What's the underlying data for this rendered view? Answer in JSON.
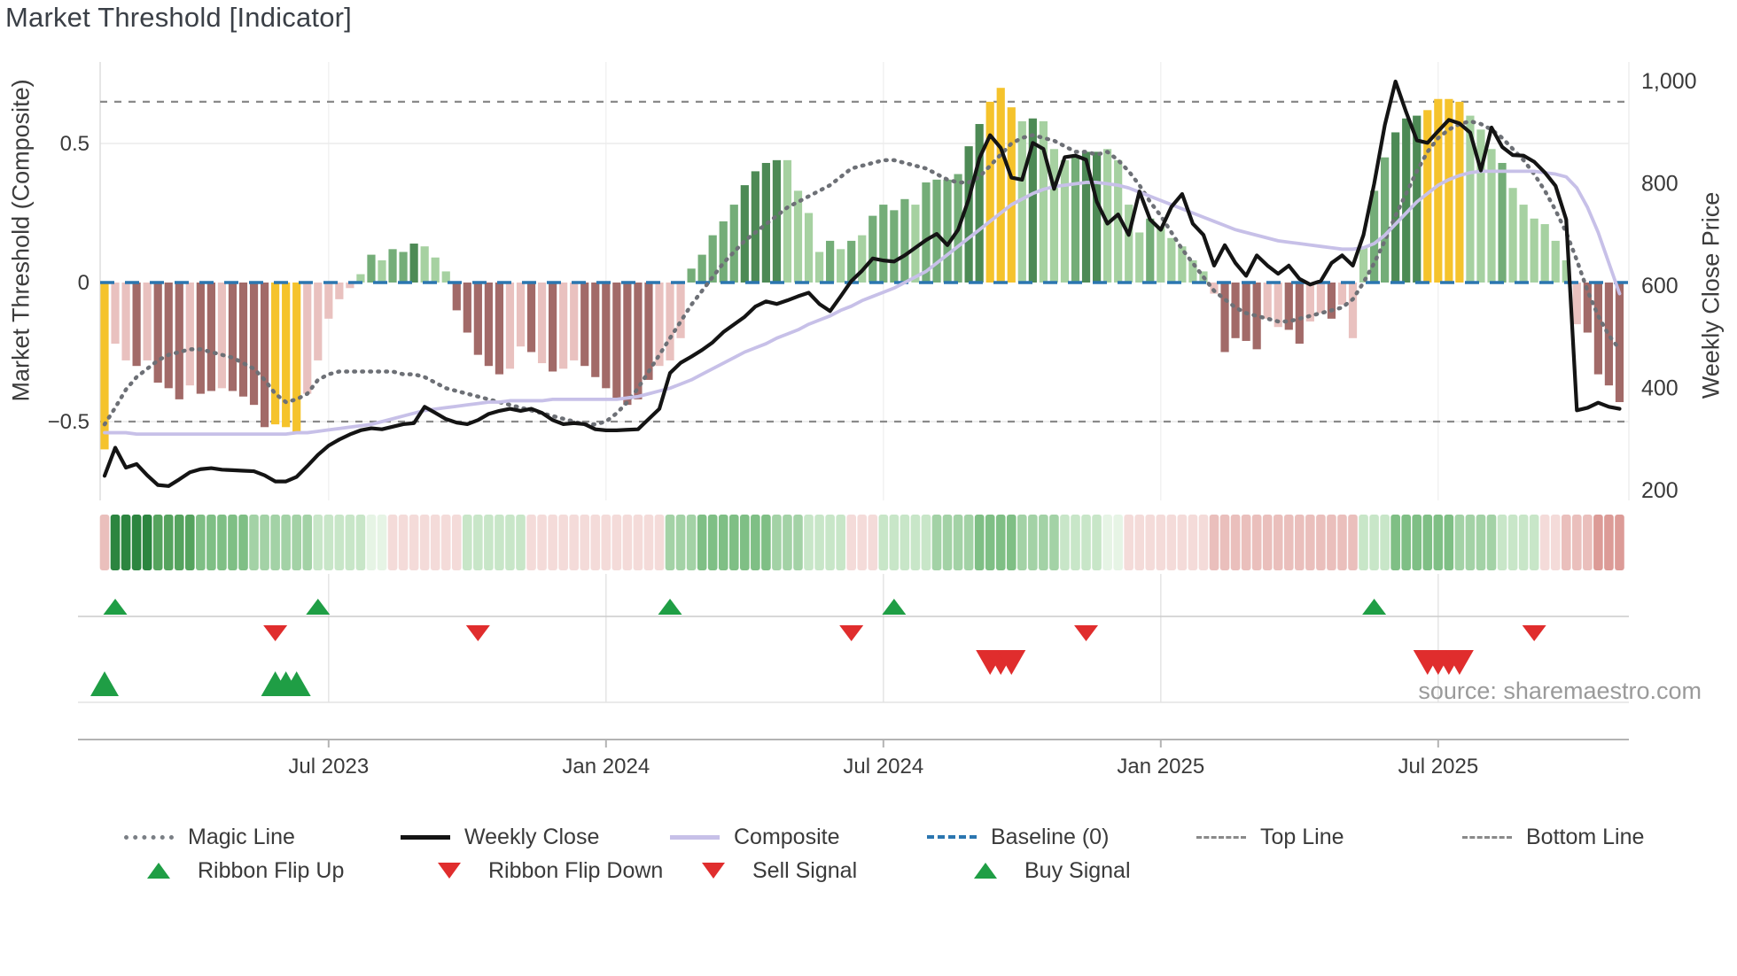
{
  "title": "Market Threshold [Indicator]",
  "source": "source: sharemaestro.com",
  "axes": {
    "left": {
      "title": "Market Threshold (Composite)",
      "ticks": [
        {
          "label": "0.5",
          "value": 0.5
        },
        {
          "label": "0",
          "value": 0
        },
        {
          "label": "−0.5",
          "value": -0.5
        }
      ]
    },
    "right": {
      "title": "Weekly Close Price",
      "ticks": [
        {
          "label": "1,000",
          "value": 1000
        },
        {
          "label": "800",
          "value": 800
        },
        {
          "label": "600",
          "value": 600
        },
        {
          "label": "400",
          "value": 400
        },
        {
          "label": "200",
          "value": 200
        }
      ]
    },
    "x": {
      "ticks": [
        {
          "label": "Jul 2023",
          "week": 21
        },
        {
          "label": "Jan 2024",
          "week": 47
        },
        {
          "label": "Jul 2024",
          "week": 73
        },
        {
          "label": "Jan 2025",
          "week": 99
        },
        {
          "label": "Jul 2025",
          "week": 125
        }
      ]
    }
  },
  "legend": {
    "row1": [
      {
        "label": "Magic Line",
        "marker": "dotted-gray",
        "color": "#7a7f85"
      },
      {
        "label": "Weekly Close",
        "marker": "solid-black",
        "color": "#141414"
      },
      {
        "label": "Composite",
        "marker": "solid-lavender",
        "color": "#c7c0e8"
      },
      {
        "label": "Baseline (0)",
        "marker": "dashed-blue",
        "color": "#2b76b0"
      },
      {
        "label": "Top Line",
        "marker": "dashed-gray",
        "color": "#8a8a8a"
      },
      {
        "label": "Bottom Line",
        "marker": "dashed-gray",
        "color": "#8a8a8a"
      }
    ],
    "row2": [
      {
        "label": "Ribbon Flip Up",
        "marker": "triangle-up",
        "color": "#1f9e45"
      },
      {
        "label": "Ribbon Flip Down",
        "marker": "triangle-down",
        "color": "#e02d2d"
      },
      {
        "label": "Sell Signal",
        "marker": "triangle-down",
        "color": "#e02d2d"
      },
      {
        "label": "Buy Signal",
        "marker": "triangle-up",
        "color": "#1f9e45"
      }
    ]
  },
  "chart_data": {
    "type": "bar+line",
    "x_unit": "week_index",
    "n_weeks": 143,
    "left_axis_range": [
      -0.75,
      0.78
    ],
    "right_axis_range": [
      150,
      1050
    ],
    "guides": {
      "top_line": 0.65,
      "baseline": 0,
      "bottom_line": -0.5
    },
    "bar_series_name": "Market Threshold",
    "bars": [
      -0.6,
      -0.22,
      -0.28,
      -0.3,
      -0.28,
      -0.36,
      -0.38,
      -0.42,
      -0.37,
      -0.4,
      -0.39,
      -0.38,
      -0.39,
      -0.41,
      -0.44,
      -0.52,
      -0.51,
      -0.52,
      -0.54,
      -0.4,
      -0.28,
      -0.13,
      -0.06,
      -0.02,
      0.03,
      0.1,
      0.08,
      0.12,
      0.11,
      0.14,
      0.13,
      0.09,
      0.04,
      -0.1,
      -0.18,
      -0.26,
      -0.3,
      -0.33,
      -0.31,
      -0.23,
      -0.25,
      -0.29,
      -0.32,
      -0.31,
      -0.28,
      -0.3,
      -0.34,
      -0.38,
      -0.42,
      -0.44,
      -0.42,
      -0.35,
      -0.3,
      -0.28,
      -0.2,
      0.05,
      0.1,
      0.17,
      0.22,
      0.28,
      0.35,
      0.4,
      0.43,
      0.44,
      0.44,
      0.33,
      0.25,
      0.11,
      0.15,
      0.12,
      0.15,
      0.17,
      0.24,
      0.28,
      0.26,
      0.3,
      0.28,
      0.36,
      0.37,
      0.37,
      0.39,
      0.49,
      0.57,
      0.65,
      0.7,
      0.63,
      0.58,
      0.59,
      0.58,
      0.48,
      0.44,
      0.45,
      0.47,
      0.47,
      0.48,
      0.44,
      0.28,
      0.18,
      0.23,
      0.2,
      0.16,
      0.13,
      0.08,
      0.04,
      -0.04,
      -0.25,
      -0.2,
      -0.21,
      -0.24,
      -0.13,
      -0.16,
      -0.17,
      -0.22,
      -0.14,
      -0.11,
      -0.13,
      -0.08,
      -0.2,
      0.13,
      0.33,
      0.45,
      0.54,
      0.59,
      0.6,
      0.62,
      0.66,
      0.66,
      0.65,
      0.6,
      0.55,
      0.48,
      0.43,
      0.34,
      0.28,
      0.23,
      0.21,
      0.15,
      0.08,
      -0.15,
      -0.18,
      -0.33,
      -0.37,
      -0.43
    ],
    "bar_colors": [
      "Y",
      "P",
      "P",
      "B",
      "P",
      "B",
      "B",
      "B",
      "P",
      "B",
      "B",
      "P",
      "B",
      "B",
      "B",
      "B",
      "Y",
      "Y",
      "Y",
      "P",
      "P",
      "P",
      "P",
      "P",
      "L",
      "M",
      "L",
      "M",
      "M",
      "G",
      "L",
      "L",
      "L",
      "B",
      "B",
      "B",
      "B",
      "B",
      "P",
      "P",
      "B",
      "P",
      "B",
      "P",
      "P",
      "B",
      "B",
      "B",
      "B",
      "B",
      "B",
      "B",
      "P",
      "P",
      "P",
      "M",
      "M",
      "M",
      "M",
      "M",
      "G",
      "G",
      "G",
      "G",
      "L",
      "L",
      "L",
      "L",
      "M",
      "L",
      "M",
      "L",
      "M",
      "M",
      "M",
      "M",
      "L",
      "M",
      "M",
      "M",
      "M",
      "G",
      "G",
      "Y",
      "Y",
      "Y",
      "L",
      "G",
      "L",
      "L",
      "L",
      "M",
      "G",
      "G",
      "L",
      "L",
      "L",
      "L",
      "M",
      "L",
      "L",
      "L",
      "L",
      "L",
      "P",
      "B",
      "B",
      "B",
      "B",
      "P",
      "P",
      "B",
      "B",
      "P",
      "P",
      "B",
      "P",
      "P",
      "L",
      "M",
      "M",
      "G",
      "G",
      "G",
      "Y",
      "Y",
      "Y",
      "Y",
      "L",
      "L",
      "L",
      "M",
      "L",
      "L",
      "L",
      "L",
      "L",
      "L",
      "P",
      "B",
      "B",
      "B",
      "B"
    ],
    "bar_palette": {
      "Y": "#f5c32c",
      "G": "#4d8a55",
      "M": "#74ad78",
      "L": "#a6d1a1",
      "B": "#a26a68",
      "P": "#e9c1bf"
    },
    "weekly_close": [
      229,
      284,
      245,
      252,
      230,
      211,
      209,
      222,
      236,
      242,
      244,
      241,
      240,
      239,
      238,
      230,
      218,
      218,
      227,
      248,
      270,
      288,
      300,
      310,
      318,
      322,
      320,
      325,
      330,
      332,
      364,
      352,
      340,
      333,
      330,
      338,
      350,
      356,
      360,
      356,
      360,
      352,
      338,
      330,
      332,
      330,
      320,
      318,
      318,
      319,
      320,
      340,
      360,
      430,
      450,
      462,
      475,
      490,
      510,
      525,
      540,
      560,
      570,
      565,
      572,
      580,
      587,
      565,
      551,
      580,
      610,
      630,
      654,
      650,
      648,
      660,
      675,
      690,
      702,
      680,
      710,
      770,
      850,
      895,
      870,
      812,
      808,
      880,
      868,
      790,
      852,
      855,
      847,
      765,
      722,
      740,
      700,
      785,
      730,
      710,
      755,
      780,
      722,
      700,
      640,
      680,
      645,
      620,
      660,
      640,
      624,
      640,
      614,
      603,
      610,
      645,
      660,
      640,
      700,
      800,
      915,
      1000,
      940,
      885,
      880,
      903,
      925,
      918,
      900,
      826,
      910,
      872,
      856,
      855,
      843,
      822,
      796,
      730,
      357,
      362,
      372,
      364,
      360
    ],
    "composite": [
      -0.54,
      -0.54,
      -0.54,
      -0.545,
      -0.545,
      -0.545,
      -0.545,
      -0.545,
      -0.545,
      -0.545,
      -0.545,
      -0.545,
      -0.545,
      -0.545,
      -0.545,
      -0.545,
      -0.545,
      -0.545,
      -0.54,
      -0.54,
      -0.535,
      -0.53,
      -0.525,
      -0.52,
      -0.515,
      -0.51,
      -0.5,
      -0.49,
      -0.48,
      -0.47,
      -0.46,
      -0.455,
      -0.45,
      -0.445,
      -0.44,
      -0.435,
      -0.43,
      -0.43,
      -0.425,
      -0.425,
      -0.425,
      -0.425,
      -0.42,
      -0.42,
      -0.42,
      -0.42,
      -0.42,
      -0.42,
      -0.42,
      -0.415,
      -0.41,
      -0.4,
      -0.39,
      -0.38,
      -0.365,
      -0.35,
      -0.33,
      -0.31,
      -0.29,
      -0.27,
      -0.25,
      -0.235,
      -0.22,
      -0.2,
      -0.185,
      -0.17,
      -0.15,
      -0.135,
      -0.12,
      -0.1,
      -0.085,
      -0.065,
      -0.05,
      -0.035,
      -0.02,
      0.0,
      0.02,
      0.04,
      0.07,
      0.1,
      0.13,
      0.16,
      0.19,
      0.22,
      0.25,
      0.28,
      0.3,
      0.32,
      0.335,
      0.345,
      0.35,
      0.355,
      0.36,
      0.36,
      0.355,
      0.35,
      0.34,
      0.325,
      0.31,
      0.295,
      0.28,
      0.265,
      0.25,
      0.235,
      0.22,
      0.205,
      0.19,
      0.18,
      0.17,
      0.16,
      0.15,
      0.145,
      0.14,
      0.135,
      0.13,
      0.125,
      0.12,
      0.12,
      0.125,
      0.14,
      0.17,
      0.21,
      0.25,
      0.29,
      0.32,
      0.35,
      0.37,
      0.385,
      0.395,
      0.4,
      0.4,
      0.4,
      0.4,
      0.4,
      0.4,
      0.395,
      0.39,
      0.38,
      0.34,
      0.27,
      0.18,
      0.07,
      -0.04
    ],
    "magic_line": [
      -0.51,
      -0.45,
      -0.385,
      -0.34,
      -0.31,
      -0.28,
      -0.26,
      -0.25,
      -0.24,
      -0.24,
      -0.25,
      -0.26,
      -0.27,
      -0.29,
      -0.31,
      -0.35,
      -0.4,
      -0.43,
      -0.42,
      -0.4,
      -0.35,
      -0.33,
      -0.32,
      -0.32,
      -0.32,
      -0.32,
      -0.32,
      -0.32,
      -0.33,
      -0.33,
      -0.34,
      -0.36,
      -0.38,
      -0.39,
      -0.4,
      -0.41,
      -0.42,
      -0.43,
      -0.44,
      -0.45,
      -0.46,
      -0.47,
      -0.48,
      -0.49,
      -0.5,
      -0.51,
      -0.51,
      -0.5,
      -0.47,
      -0.43,
      -0.38,
      -0.32,
      -0.26,
      -0.2,
      -0.14,
      -0.08,
      -0.03,
      0.02,
      0.07,
      0.11,
      0.15,
      0.18,
      0.21,
      0.24,
      0.27,
      0.29,
      0.31,
      0.33,
      0.35,
      0.38,
      0.41,
      0.42,
      0.43,
      0.44,
      0.44,
      0.43,
      0.42,
      0.41,
      0.39,
      0.37,
      0.36,
      0.36,
      0.38,
      0.42,
      0.46,
      0.5,
      0.52,
      0.53,
      0.52,
      0.51,
      0.49,
      0.47,
      0.47,
      0.46,
      0.47,
      0.44,
      0.4,
      0.35,
      0.29,
      0.24,
      0.18,
      0.12,
      0.07,
      0.02,
      -0.03,
      -0.06,
      -0.09,
      -0.11,
      -0.12,
      -0.13,
      -0.14,
      -0.14,
      -0.13,
      -0.12,
      -0.11,
      -0.1,
      -0.09,
      -0.06,
      0.0,
      0.07,
      0.15,
      0.24,
      0.32,
      0.4,
      0.47,
      0.52,
      0.55,
      0.57,
      0.58,
      0.57,
      0.55,
      0.52,
      0.48,
      0.44,
      0.39,
      0.33,
      0.26,
      0.18,
      0.08,
      -0.03,
      -0.12,
      -0.19,
      -0.24
    ],
    "ribbon": [
      "p2",
      "g5",
      "g5",
      "g5",
      "g5",
      "g4",
      "g4",
      "g4",
      "g4",
      "g3",
      "g3",
      "g3",
      "g3",
      "g3",
      "g2",
      "g2",
      "g2",
      "g2",
      "g2",
      "g2",
      "g1",
      "g1",
      "g1",
      "g1",
      "g1",
      "g0",
      "g0",
      "p1",
      "p1",
      "p1",
      "p1",
      "p1",
      "p1",
      "p1",
      "g1",
      "g1",
      "g1",
      "g1",
      "g1",
      "g1",
      "p1",
      "p1",
      "p1",
      "p1",
      "p1",
      "p1",
      "p1",
      "p1",
      "p1",
      "p1",
      "p1",
      "p1",
      "p1",
      "g2",
      "g2",
      "g2",
      "g3",
      "g3",
      "g3",
      "g3",
      "g3",
      "g3",
      "g3",
      "g2",
      "g2",
      "g2",
      "g1",
      "g1",
      "g1",
      "g1",
      "p1",
      "p1",
      "p1",
      "g1",
      "g1",
      "g1",
      "g1",
      "g1",
      "g2",
      "g2",
      "g2",
      "g2",
      "g3",
      "g3",
      "g3",
      "g3",
      "g2",
      "g2",
      "g2",
      "g2",
      "g1",
      "g1",
      "g1",
      "g1",
      "g0",
      "g0",
      "p1",
      "p1",
      "p1",
      "p1",
      "p1",
      "p1",
      "p1",
      "p1",
      "p2",
      "p2",
      "p2",
      "p2",
      "p2",
      "p2",
      "p2",
      "p2",
      "p2",
      "p2",
      "p2",
      "p2",
      "p2",
      "p2",
      "g1",
      "g1",
      "g1",
      "g3",
      "g3",
      "g3",
      "g3",
      "g3",
      "g3",
      "g2",
      "g2",
      "g2",
      "g2",
      "g1",
      "g1",
      "g1",
      "g1",
      "p1",
      "p1",
      "p2",
      "p2",
      "p2",
      "p3",
      "p3",
      "p3"
    ],
    "ribbon_palette": {
      "g5": "#2c8540",
      "g4": "#55a35e",
      "g3": "#7fbf85",
      "g2": "#a3d2a6",
      "g1": "#c8e6c8",
      "g0": "#e6f4e5",
      "p1": "#f4dbd9",
      "p2": "#eabfbc",
      "p3": "#dc9b97"
    },
    "signals": {
      "ribbon_flip_up_weeks": [
        1,
        20,
        53,
        74,
        119
      ],
      "ribbon_flip_down_weeks": [
        16,
        35,
        70,
        92,
        134
      ],
      "buy_weeks": [
        0,
        16,
        17,
        18
      ],
      "sell_weeks": [
        83,
        84,
        85,
        124,
        125,
        126,
        127
      ],
      "up_color": "#1f9e45",
      "down_color": "#e02d2d"
    },
    "line_colors": {
      "weekly_close": "#141414",
      "composite": "#c7c0e8",
      "magic_line": "#6d7076",
      "baseline": "#2b76b0",
      "top_bottom": "#8a8a8a"
    }
  }
}
